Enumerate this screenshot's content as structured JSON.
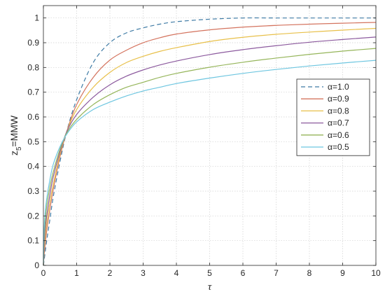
{
  "chart_data": {
    "type": "line",
    "title": "",
    "xlabel": "τ",
    "ylabel": "z5=MMW",
    "ylabel_main": "z",
    "ylabel_sub": "5",
    "ylabel_rest": "=MMW",
    "xlim": [
      0,
      10
    ],
    "ylim": [
      0,
      1.05
    ],
    "xticks": [
      "0",
      "1",
      "2",
      "3",
      "4",
      "5",
      "6",
      "7",
      "8",
      "9",
      "10"
    ],
    "yticks": [
      "0",
      "0.1",
      "0.2",
      "0.3",
      "0.4",
      "0.5",
      "0.6",
      "0.7",
      "0.8",
      "0.9",
      "1"
    ],
    "grid": true,
    "legend_position": "center-right",
    "x": [
      0,
      0.02,
      0.05,
      0.1,
      0.2,
      0.3,
      0.5,
      0.7,
      1,
      1.5,
      2,
      2.5,
      3,
      3.5,
      4,
      5,
      6,
      7,
      8,
      9,
      10
    ],
    "series": [
      {
        "name": "α=1.0",
        "color": "#3f7ba5",
        "dash": "dashed",
        "values": [
          0,
          0.02,
          0.05,
          0.1,
          0.19,
          0.28,
          0.42,
          0.54,
          0.67,
          0.82,
          0.9,
          0.94,
          0.96,
          0.975,
          0.985,
          0.995,
          1.0,
          1.0,
          1.0,
          1.0,
          1.0
        ]
      },
      {
        "name": "α=0.9",
        "color": "#d4745f",
        "dash": "solid",
        "values": [
          0,
          0.04,
          0.08,
          0.14,
          0.23,
          0.31,
          0.44,
          0.54,
          0.65,
          0.76,
          0.83,
          0.87,
          0.9,
          0.92,
          0.935,
          0.952,
          0.963,
          0.97,
          0.975,
          0.979,
          0.982
        ]
      },
      {
        "name": "α=0.8",
        "color": "#e8c04a",
        "dash": "solid",
        "values": [
          0,
          0.06,
          0.11,
          0.17,
          0.26,
          0.33,
          0.45,
          0.54,
          0.63,
          0.72,
          0.78,
          0.82,
          0.845,
          0.865,
          0.88,
          0.905,
          0.922,
          0.934,
          0.943,
          0.951,
          0.958
        ]
      },
      {
        "name": "α=0.7",
        "color": "#8c5a9e",
        "dash": "solid",
        "values": [
          0,
          0.08,
          0.14,
          0.2,
          0.29,
          0.36,
          0.46,
          0.54,
          0.61,
          0.68,
          0.73,
          0.765,
          0.79,
          0.81,
          0.826,
          0.852,
          0.872,
          0.888,
          0.902,
          0.913,
          0.923
        ]
      },
      {
        "name": "α=0.6",
        "color": "#95b55a",
        "dash": "solid",
        "values": [
          0,
          0.11,
          0.17,
          0.24,
          0.32,
          0.38,
          0.47,
          0.535,
          0.59,
          0.65,
          0.69,
          0.72,
          0.74,
          0.76,
          0.776,
          0.801,
          0.821,
          0.838,
          0.853,
          0.866,
          0.877
        ]
      },
      {
        "name": "α=0.5",
        "color": "#6ec6e0",
        "dash": "solid",
        "values": [
          0,
          0.14,
          0.21,
          0.27,
          0.35,
          0.41,
          0.48,
          0.53,
          0.58,
          0.63,
          0.66,
          0.685,
          0.705,
          0.72,
          0.735,
          0.757,
          0.776,
          0.792,
          0.806,
          0.818,
          0.829
        ]
      }
    ]
  }
}
